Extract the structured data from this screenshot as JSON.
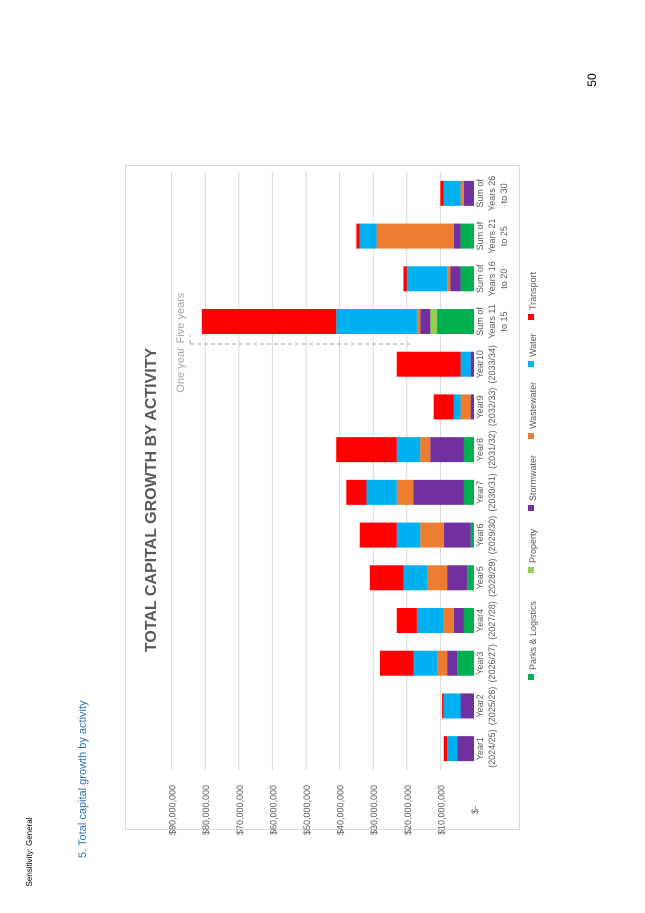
{
  "page_number": "50",
  "sensitivity_label": "Sensitivity: General",
  "section_heading": "5.   Total capital growth by activity",
  "colors": {
    "Parks & Logistics": "#00B050",
    "Property": "#92D050",
    "Stormwater": "#7030A0",
    "Wastewater": "#ED7D31",
    "Water": "#00B0F0",
    "Transport": "#FF0000"
  },
  "chart_data": {
    "type": "bar",
    "orientation": "stacked",
    "title": "TOTAL CAPITAL GROWTH BY ACTIVITY",
    "categories": [
      [
        "Year1",
        "(2024/25)"
      ],
      [
        "Year2",
        "(2025/26)"
      ],
      [
        "Year3",
        "(2026/27)"
      ],
      [
        "Year4",
        "(2027/28)"
      ],
      [
        "Year5",
        "(2028/29)"
      ],
      [
        "Year6",
        "(2029/30)"
      ],
      [
        "Year7",
        "(2030/31)"
      ],
      [
        "Year8",
        "(2031/32)"
      ],
      [
        "Year9",
        "(2032/33)"
      ],
      [
        "Year10",
        "(2033/34)"
      ],
      [
        "Sum of",
        "Years 11",
        "to 15"
      ],
      [
        "Sum of",
        "Years 16",
        "to 20"
      ],
      [
        "Sum of",
        "Years 21",
        "to 25"
      ],
      [
        "Sum of",
        "Years 26",
        "to 30"
      ]
    ],
    "series": [
      {
        "name": "Parks & Logistics",
        "values": [
          0,
          0,
          5000000,
          3000000,
          2000000,
          1000000,
          3000000,
          3000000,
          0,
          0,
          11000000,
          4000000,
          4000000,
          0
        ]
      },
      {
        "name": "Property",
        "values": [
          0,
          0,
          0,
          0,
          0,
          0,
          0,
          0,
          0,
          0,
          2000000,
          0,
          0,
          0
        ]
      },
      {
        "name": "Stormwater",
        "values": [
          5000000,
          4000000,
          3000000,
          3000000,
          6000000,
          8000000,
          15000000,
          10000000,
          1000000,
          1000000,
          3000000,
          3000000,
          2000000,
          3000000
        ]
      },
      {
        "name": "Wastewater",
        "values": [
          0,
          0,
          3000000,
          3000000,
          6000000,
          7000000,
          5000000,
          3000000,
          3000000,
          0,
          1000000,
          1000000,
          23000000,
          1000000
        ]
      },
      {
        "name": "Water",
        "values": [
          3000000,
          5000000,
          7000000,
          8000000,
          7000000,
          7000000,
          9000000,
          7000000,
          2000000,
          3000000,
          24000000,
          12000000,
          5000000,
          5000000
        ]
      },
      {
        "name": "Transport",
        "values": [
          1000000,
          500000,
          10000000,
          6000000,
          10000000,
          11000000,
          6000000,
          18000000,
          6000000,
          19000000,
          40000000,
          1000000,
          1000000,
          1000000
        ]
      }
    ],
    "y_ticks": [
      "$-",
      "$10,000,000",
      "$20,000,000",
      "$30,000,000",
      "$40,000,000",
      "$50,000,000",
      "$60,000,000",
      "$70,000,000",
      "$80,000,000",
      "$90,000,000"
    ],
    "ylim": [
      0,
      90000000
    ],
    "grid": true,
    "legend_position": "bottom",
    "annotations": [
      "One year",
      "Five years"
    ]
  }
}
